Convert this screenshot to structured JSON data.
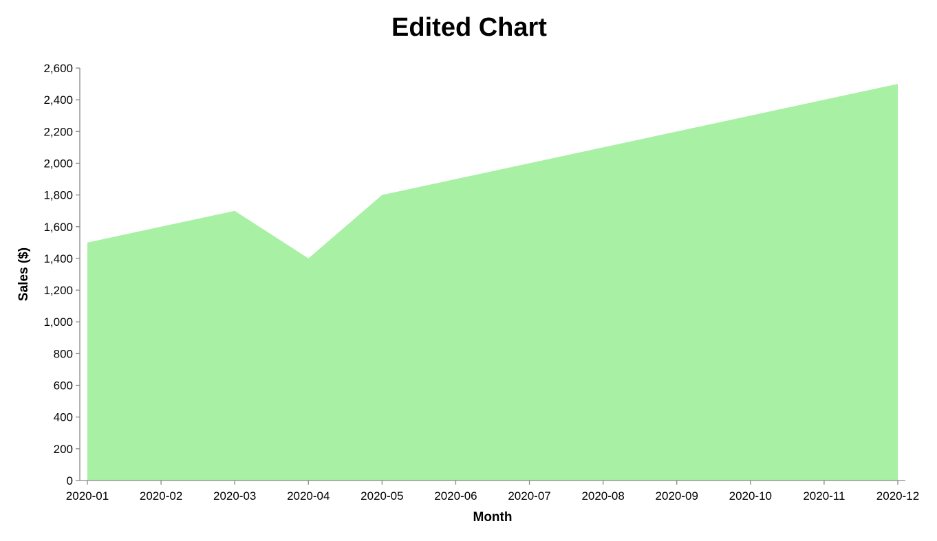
{
  "chart_data": {
    "type": "area",
    "title": "Edited Chart",
    "xlabel": "Month",
    "ylabel": "Sales ($)",
    "x": [
      "2020-01",
      "2020-02",
      "2020-03",
      "2020-04",
      "2020-05",
      "2020-06",
      "2020-07",
      "2020-08",
      "2020-09",
      "2020-10",
      "2020-11",
      "2020-12"
    ],
    "series": [
      {
        "values": [
          1500,
          1600,
          1700,
          1400,
          1800,
          1900,
          2000,
          2100,
          2200,
          2300,
          2400,
          2500
        ],
        "color": "#a8f0a4"
      }
    ],
    "ylim": [
      0,
      2600
    ],
    "yticks": [
      0,
      200,
      400,
      600,
      800,
      1000,
      1200,
      1400,
      1600,
      1800,
      2000,
      2200,
      2400,
      2600
    ],
    "ytick_labels": [
      "0",
      "200",
      "400",
      "600",
      "800",
      "1,000",
      "1,200",
      "1,400",
      "1,600",
      "1,800",
      "2,000",
      "2,200",
      "2,400",
      "2,600"
    ],
    "grid": false,
    "legend": "none",
    "axis_color": "#888888"
  }
}
